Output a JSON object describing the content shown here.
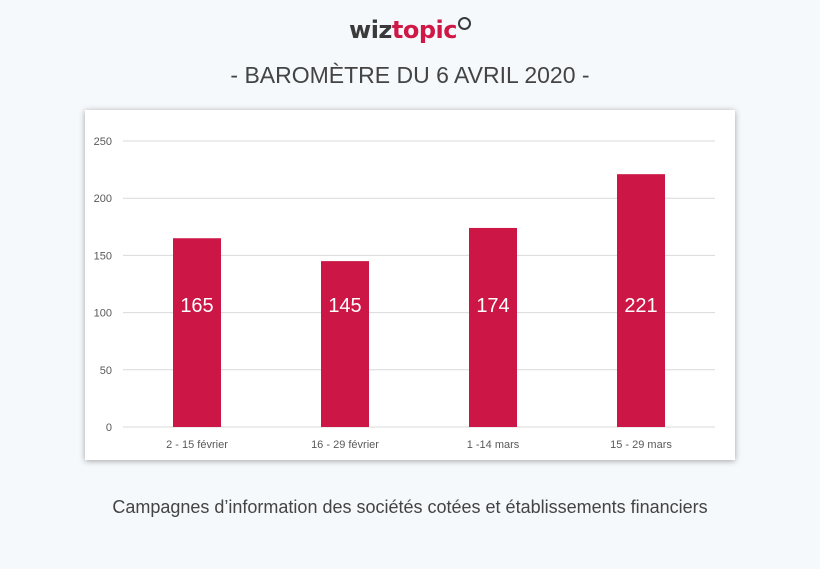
{
  "header": {
    "logo_part1": "wiz",
    "logo_part2": "topic",
    "title": "- BAROMÈTRE DU 6 AVRIL 2020 -"
  },
  "caption": "Campagnes d’information des sociétés cotées et établissements financiers",
  "colors": {
    "bar": "#cc1646",
    "brand": "#cf1846",
    "grid": "#d9d9d9",
    "axis_text": "#595959"
  },
  "chart_data": {
    "type": "bar",
    "categories": [
      "2 - 15 février",
      "16 - 29 février",
      "1 -14 mars",
      "15 - 29 mars"
    ],
    "values": [
      165,
      145,
      174,
      221
    ],
    "data_labels": [
      "165",
      "145",
      "174",
      "221"
    ],
    "yticks": [
      0,
      50,
      100,
      150,
      200,
      250
    ],
    "ylim": [
      0,
      250
    ],
    "grid": true,
    "legend": "none",
    "title": "",
    "xlabel": "",
    "ylabel": ""
  }
}
